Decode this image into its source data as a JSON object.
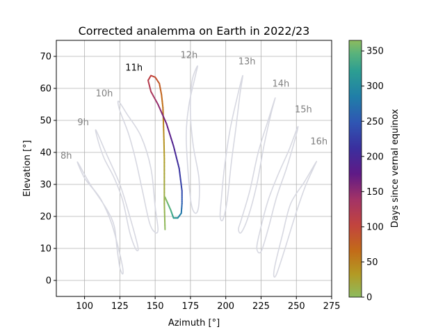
{
  "chart_data": {
    "type": "line",
    "title": "Corrected analemma on Earth in 2022/23",
    "xlabel": "Azimuth [°]",
    "ylabel": "Elevation [°]",
    "xlim": [
      80,
      275
    ],
    "ylim": [
      -5,
      75
    ],
    "xticks": [
      "100",
      "125",
      "150",
      "175",
      "200",
      "225",
      "250",
      "275"
    ],
    "yticks": [
      "0",
      "10",
      "20",
      "30",
      "40",
      "50",
      "60",
      "70"
    ],
    "grid": true,
    "colorbar": {
      "label": "Days since vernal equinox",
      "range": [
        0,
        365
      ],
      "ticks": [
        "0",
        "50",
        "100",
        "150",
        "200",
        "250",
        "300",
        "350"
      ]
    },
    "hour_labels": [
      {
        "text": "8h",
        "x": 87,
        "y": 38,
        "highlight": false
      },
      {
        "text": "9h",
        "x": 99,
        "y": 48.5,
        "highlight": false
      },
      {
        "text": "10h",
        "x": 114,
        "y": 57.5,
        "highlight": false
      },
      {
        "text": "11h",
        "x": 135,
        "y": 65.5,
        "highlight": true
      },
      {
        "text": "12h",
        "x": 174,
        "y": 69.5,
        "highlight": false
      },
      {
        "text": "13h",
        "x": 215,
        "y": 67.5,
        "highlight": false
      },
      {
        "text": "14h",
        "x": 239,
        "y": 60.5,
        "highlight": false
      },
      {
        "text": "15h",
        "x": 255,
        "y": 52.5,
        "highlight": false
      },
      {
        "text": "16h",
        "x": 266,
        "y": 42.5,
        "highlight": false
      }
    ],
    "series": [
      {
        "hour": "8h",
        "points": [
          [
            95,
            37
          ],
          [
            104,
            30
          ],
          [
            112,
            25
          ],
          [
            119,
            18
          ],
          [
            124,
            10
          ],
          [
            127,
            4
          ],
          [
            127,
            2
          ],
          [
            125,
            4
          ],
          [
            123,
            10
          ],
          [
            121,
            17
          ],
          [
            116,
            22
          ],
          [
            107,
            28
          ],
          [
            100,
            32
          ],
          [
            95,
            37
          ]
        ]
      },
      {
        "hour": "9h",
        "points": [
          [
            108,
            47
          ],
          [
            115,
            40
          ],
          [
            125,
            30
          ],
          [
            132,
            20
          ],
          [
            137,
            12
          ],
          [
            138,
            9.5
          ],
          [
            136,
            10
          ],
          [
            132,
            15
          ],
          [
            127,
            25
          ],
          [
            121,
            32
          ],
          [
            114,
            38
          ],
          [
            110,
            43
          ],
          [
            108,
            47
          ]
        ]
      },
      {
        "hour": "10h",
        "points": [
          [
            124,
            56
          ],
          [
            130,
            52
          ],
          [
            140,
            45
          ],
          [
            147,
            35
          ],
          [
            150,
            23
          ],
          [
            152,
            16
          ],
          [
            150,
            15
          ],
          [
            146,
            18
          ],
          [
            141,
            28
          ],
          [
            136,
            38
          ],
          [
            131,
            46
          ],
          [
            125,
            53
          ],
          [
            124,
            56
          ]
        ]
      },
      {
        "hour": "12h",
        "points": [
          [
            180,
            67
          ],
          [
            178,
            63
          ],
          [
            174,
            55
          ],
          [
            172,
            45
          ],
          [
            174,
            30
          ],
          [
            176,
            23
          ],
          [
            179,
            21
          ],
          [
            181,
            24
          ],
          [
            181,
            32
          ],
          [
            177,
            42
          ],
          [
            175,
            52
          ],
          [
            176,
            62
          ],
          [
            180,
            67
          ]
        ]
      },
      {
        "hour": "13h",
        "points": [
          [
            212,
            64
          ],
          [
            208,
            57
          ],
          [
            203,
            47
          ],
          [
            199,
            35
          ],
          [
            197,
            26
          ],
          [
            196,
            20
          ],
          [
            198,
            19
          ],
          [
            201,
            25
          ],
          [
            204,
            37
          ],
          [
            207,
            47
          ],
          [
            210,
            58
          ],
          [
            212,
            64
          ]
        ]
      },
      {
        "hour": "14h",
        "points": [
          [
            235,
            57
          ],
          [
            230,
            50
          ],
          [
            223,
            40
          ],
          [
            217,
            28
          ],
          [
            211,
            19
          ],
          [
            209,
            16
          ],
          [
            211,
            15
          ],
          [
            216,
            20
          ],
          [
            222,
            30
          ],
          [
            227,
            42
          ],
          [
            232,
            52
          ],
          [
            235,
            57
          ]
        ]
      },
      {
        "hour": "15h",
        "points": [
          [
            251,
            48
          ],
          [
            245,
            41
          ],
          [
            237,
            33
          ],
          [
            230,
            25
          ],
          [
            224,
            15
          ],
          [
            222,
            10
          ],
          [
            225,
            9
          ],
          [
            230,
            16
          ],
          [
            236,
            26
          ],
          [
            243,
            35
          ],
          [
            249,
            44
          ],
          [
            251,
            48
          ]
        ]
      },
      {
        "hour": "16h",
        "points": [
          [
            264,
            37
          ],
          [
            256,
            31
          ],
          [
            246,
            24
          ],
          [
            240,
            14
          ],
          [
            235,
            5
          ],
          [
            234,
            1.5
          ],
          [
            236,
            2
          ],
          [
            242,
            10
          ],
          [
            249,
            20
          ],
          [
            256,
            29
          ],
          [
            262,
            35
          ],
          [
            264,
            37
          ]
        ]
      }
    ],
    "highlight_series": {
      "hour": "11h",
      "points": [
        {
          "day": 0,
          "az": 157,
          "el": 15.9,
          "_": 0
        },
        {
          "day": 10,
          "az": 156.5,
          "el": 24
        },
        {
          "day": 20,
          "az": 156.5,
          "el": 31
        },
        {
          "day": 30,
          "az": 156.5,
          "el": 38
        },
        {
          "day": 40,
          "az": 156.2,
          "el": 44
        },
        {
          "day": 50,
          "az": 155.8,
          "el": 50
        },
        {
          "day": 60,
          "az": 155.5,
          "el": 54
        },
        {
          "day": 70,
          "az": 154.5,
          "el": 58
        },
        {
          "day": 80,
          "az": 153,
          "el": 61.5
        },
        {
          "day": 90,
          "az": 150,
          "el": 63.5
        },
        {
          "day": 100,
          "az": 147,
          "el": 64
        },
        {
          "day": 110,
          "az": 145,
          "el": 62.5
        },
        {
          "day": 120,
          "az": 147,
          "el": 59
        },
        {
          "day": 140,
          "az": 152,
          "el": 55
        },
        {
          "day": 160,
          "az": 158,
          "el": 49
        },
        {
          "day": 180,
          "az": 163,
          "el": 42
        },
        {
          "day": 200,
          "az": 167,
          "el": 35
        },
        {
          "day": 220,
          "az": 169,
          "el": 28
        },
        {
          "day": 240,
          "az": 169,
          "el": 24
        },
        {
          "day": 260,
          "az": 168.5,
          "el": 21
        },
        {
          "day": 280,
          "az": 166,
          "el": 19.5
        },
        {
          "day": 300,
          "az": 163,
          "el": 19.5
        },
        {
          "day": 320,
          "az": 161,
          "el": 22
        },
        {
          "day": 340,
          "az": 159,
          "el": 24
        },
        {
          "day": 365,
          "az": 157,
          "el": 26
        }
      ]
    },
    "colors": {
      "faded_curve": "#d7d8e1",
      "faded_label": "#7f7f7f",
      "grid": "#b0b0b0",
      "colormap": [
        "#8dbb5e",
        "#b39a24",
        "#c26b18",
        "#c2443e",
        "#a33366",
        "#5f1a86",
        "#3a2f9e",
        "#2f56b3",
        "#207ea8",
        "#2c9e92",
        "#5ab37b",
        "#8dbb5e"
      ]
    }
  }
}
